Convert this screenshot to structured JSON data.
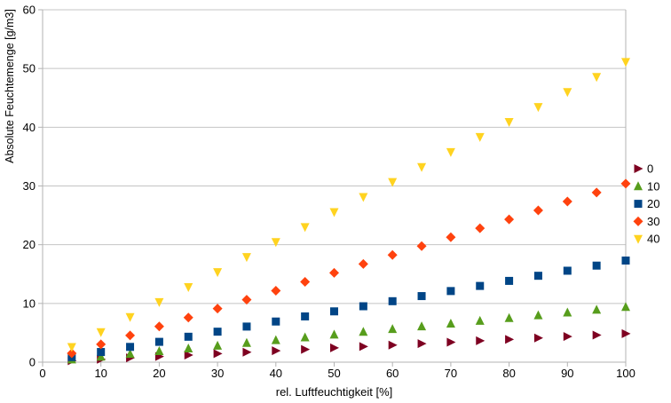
{
  "chart_data": {
    "type": "scatter",
    "title": "",
    "xlabel": "rel. Luftfeuchtigkeit [%]",
    "ylabel": "Absolute Feuchtemenge [g/m3]",
    "x": [
      5,
      10,
      15,
      20,
      25,
      30,
      35,
      40,
      45,
      50,
      55,
      60,
      65,
      70,
      75,
      80,
      85,
      90,
      95,
      100
    ],
    "xlim": [
      0,
      100
    ],
    "ylim": [
      0,
      60
    ],
    "xticks": [
      0,
      10,
      20,
      30,
      40,
      50,
      60,
      70,
      80,
      90,
      100
    ],
    "yticks": [
      0,
      10,
      20,
      30,
      40,
      50,
      60
    ],
    "grid": "horizontal-only",
    "legend_position": "right",
    "series": [
      {
        "name": "0",
        "marker": "triangle-right",
        "color": "#7E0021",
        "values": [
          0.24,
          0.49,
          0.73,
          0.97,
          1.21,
          1.46,
          1.7,
          1.94,
          2.18,
          2.43,
          2.67,
          2.91,
          3.15,
          3.4,
          3.64,
          3.88,
          4.12,
          4.37,
          4.61,
          4.85
        ]
      },
      {
        "name": "10",
        "marker": "triangle-up",
        "color": "#579D1C",
        "values": [
          0.47,
          0.94,
          1.41,
          1.88,
          2.35,
          2.82,
          3.29,
          3.76,
          4.23,
          4.7,
          5.17,
          5.64,
          6.11,
          6.58,
          7.05,
          7.52,
          7.99,
          8.46,
          8.93,
          9.4
        ]
      },
      {
        "name": "20",
        "marker": "square",
        "color": "#004586",
        "values": [
          0.87,
          1.73,
          2.6,
          3.46,
          4.33,
          5.19,
          6.06,
          6.92,
          7.79,
          8.65,
          9.52,
          10.38,
          11.25,
          12.11,
          12.98,
          13.84,
          14.71,
          15.57,
          16.44,
          17.3
        ]
      },
      {
        "name": "30",
        "marker": "diamond",
        "color": "#FF420E",
        "values": [
          1.52,
          3.04,
          4.56,
          6.08,
          7.6,
          9.12,
          10.64,
          12.16,
          13.68,
          15.2,
          16.72,
          18.24,
          19.76,
          21.28,
          22.8,
          24.32,
          25.84,
          27.36,
          28.88,
          30.4
        ]
      },
      {
        "name": "40",
        "marker": "triangle-down",
        "color": "#FFD320",
        "values": [
          2.56,
          5.11,
          7.67,
          10.22,
          12.78,
          15.33,
          17.89,
          20.44,
          23.0,
          25.55,
          28.11,
          30.66,
          33.22,
          35.77,
          38.33,
          40.88,
          43.44,
          45.99,
          48.55,
          51.1
        ]
      }
    ]
  },
  "colors": {
    "background": "#FFFFFF",
    "gridline": "#C4C4C4",
    "axis": "#B3B3B3",
    "text": "#000000"
  }
}
